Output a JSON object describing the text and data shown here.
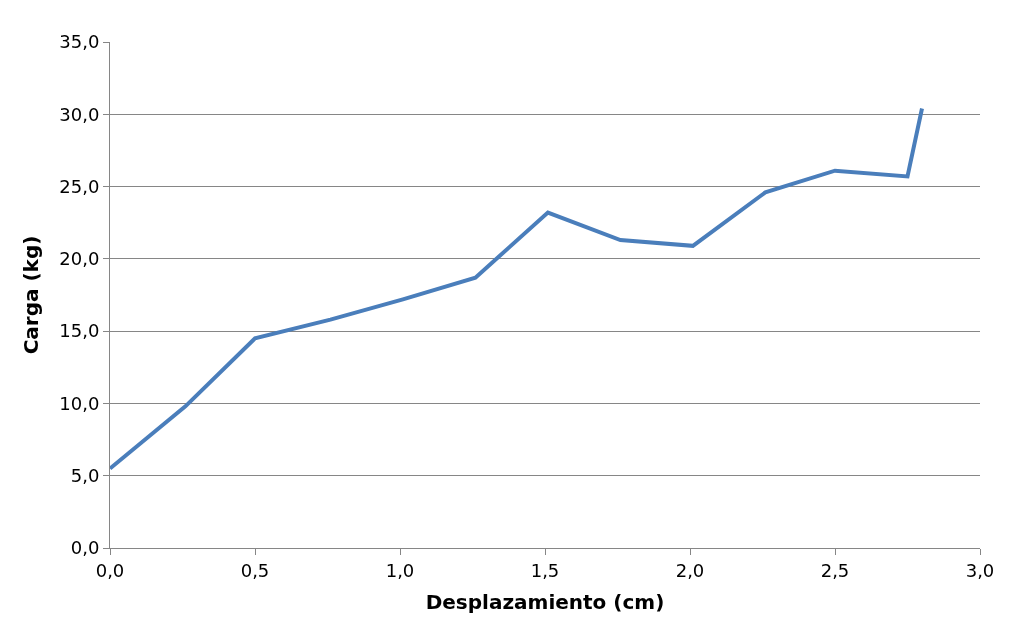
{
  "chart_data": {
    "type": "line",
    "xlabel": "Desplazamiento (cm)",
    "ylabel": "Carga (kg)",
    "x": [
      0.0,
      0.26,
      0.5,
      0.76,
      1.01,
      1.26,
      1.51,
      1.76,
      2.01,
      2.26,
      2.5,
      2.75,
      2.8
    ],
    "series": [
      {
        "color": "#4a7ebb",
        "values": [
          5.5,
          9.8,
          14.5,
          15.8,
          17.2,
          18.7,
          23.2,
          21.3,
          20.9,
          24.6,
          26.1,
          25.7,
          30.4
        ]
      }
    ],
    "xlim": [
      0,
      3
    ],
    "ylim": [
      0,
      35
    ],
    "xticks": [
      {
        "value": 0,
        "label": "0,0"
      },
      {
        "value": 0.5,
        "label": "0,5"
      },
      {
        "value": 1,
        "label": "1,0"
      },
      {
        "value": 1.5,
        "label": "1,5"
      },
      {
        "value": 2,
        "label": "2,0"
      },
      {
        "value": 2.5,
        "label": "2,5"
      },
      {
        "value": 3,
        "label": "3,0"
      }
    ],
    "yticks": [
      {
        "value": 0,
        "label": "0,0"
      },
      {
        "value": 5,
        "label": "5,0"
      },
      {
        "value": 10,
        "label": "10,0"
      },
      {
        "value": 15,
        "label": "15,0"
      },
      {
        "value": 20,
        "label": "20,0"
      },
      {
        "value": 25,
        "label": "25,0"
      },
      {
        "value": 30,
        "label": "30,0"
      },
      {
        "value": 35,
        "label": "35,0"
      }
    ],
    "grid": "y",
    "legend": false,
    "marker": "none",
    "line_style": "solid"
  }
}
